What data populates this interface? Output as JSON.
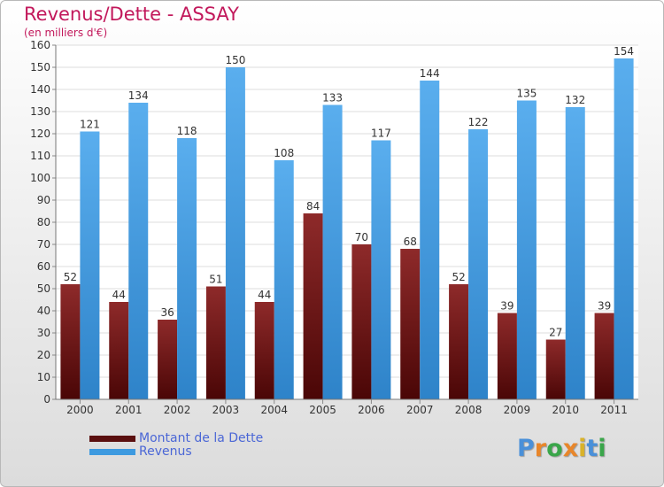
{
  "header": {
    "title": "Revenus/Dette - ASSAY",
    "subtitle": "(en milliers d'€)"
  },
  "chart_data": {
    "type": "bar",
    "categories": [
      "2000",
      "2001",
      "2002",
      "2003",
      "2004",
      "2005",
      "2006",
      "2007",
      "2008",
      "2009",
      "2010",
      "2011"
    ],
    "series": [
      {
        "name": "Montant de la Dette",
        "values": [
          52,
          44,
          36,
          51,
          44,
          84,
          70,
          68,
          52,
          39,
          27,
          39
        ],
        "color": "#7a1e1e"
      },
      {
        "name": "Revenus",
        "values": [
          121,
          134,
          118,
          150,
          108,
          133,
          117,
          144,
          122,
          135,
          132,
          154
        ],
        "color": "#4da3e6"
      }
    ],
    "ylim": [
      0,
      160
    ],
    "yticks": [
      0,
      10,
      20,
      30,
      40,
      50,
      60,
      70,
      80,
      90,
      100,
      110,
      120,
      130,
      140,
      150,
      160
    ],
    "grid": true,
    "legend": "bottom-left"
  },
  "legend": {
    "items": [
      {
        "label": "Montant de la Dette",
        "color": "#5a0f0f"
      },
      {
        "label": "Revenus",
        "color": "#3d9ae0"
      }
    ]
  },
  "logo": {
    "letters": [
      "P",
      "r",
      "o",
      "x",
      "i",
      "t",
      "i"
    ],
    "colors": [
      "#4a90d9",
      "#e8862a",
      "#3aa64a",
      "#e8862a",
      "#d9b22a",
      "#4a90d9",
      "#3aa64a"
    ]
  }
}
